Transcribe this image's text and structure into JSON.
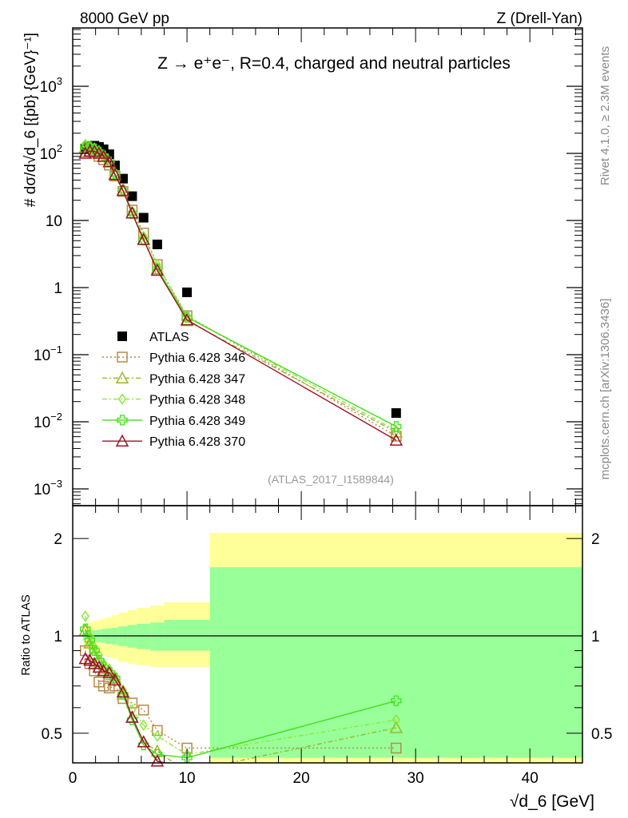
{
  "header": {
    "left": "8000 GeV pp",
    "right": "Z (Drell-Yan)"
  },
  "side": {
    "top": "Rivet 4.1.0, ≥ 2.3M events",
    "bottom": "mcplots.cern.ch [arXiv:1306.3436]"
  },
  "chart_data": [
    {
      "type": "scatter",
      "title": "Z → e⁺e⁻, R=0.4, charged and neutral particles",
      "ylabel": "# dσ/d√d_6 [{pb} {GeV}⁻¹]",
      "xlabel": "√d_6 [GeV]",
      "yscale": "log",
      "ylim": [
        0.00056,
        7400
      ],
      "xlim": [
        0,
        44.6
      ],
      "annotation": "(ATLAS_2017_I1589844)",
      "yticks": [
        {
          "base": "10",
          "exp": "3",
          "v": 1000
        },
        {
          "base": "10",
          "exp": "2",
          "v": 100
        },
        {
          "base": "10",
          "exp": "",
          "v": 10
        },
        {
          "base": "1",
          "exp": "",
          "v": 1
        },
        {
          "base": "10",
          "exp": "−1",
          "v": 0.1
        },
        {
          "base": "10",
          "exp": "−2",
          "v": 0.01
        },
        {
          "base": "10",
          "exp": "−3",
          "v": 0.001
        }
      ],
      "x": [
        1.1,
        1.5,
        1.9,
        2.3,
        2.7,
        3.2,
        3.7,
        4.4,
        5.2,
        6.2,
        7.4,
        10.0,
        28.3
      ],
      "legend_placement": "center-left",
      "series": [
        {
          "name": "ATLAS",
          "color": "#000000",
          "marker": "filled-square",
          "line": "none",
          "values": [
            118,
            128,
            130,
            125,
            115,
            97,
            66,
            42,
            23,
            11,
            4.4,
            0.85,
            0.0135
          ]
        },
        {
          "name": "Pythia 6.428 346",
          "color": "#b8894a",
          "marker": "open-square",
          "line": "dotted",
          "values": [
            106,
            105,
            101,
            90,
            80.5,
            67,
            46,
            27,
            14.3,
            6.5,
            2.2,
            0.38,
            0.0061
          ]
        },
        {
          "name": "Pythia 6.428 347",
          "color": "#9ab82a",
          "marker": "open-triangle",
          "line": "dashdot",
          "values": [
            123,
            122,
            114,
            104,
            91,
            74,
            49,
            28,
            12.9,
            5.2,
            1.9,
            0.32,
            0.007
          ]
        },
        {
          "name": "Pythia 6.428 348",
          "color": "#8ee83a",
          "marker": "open-diamond",
          "line": "dashdot",
          "values": [
            136,
            128,
            120,
            109,
            94,
            77,
            50,
            29,
            13.6,
            5.8,
            2.2,
            0.37,
            0.0074
          ]
        },
        {
          "name": "Pythia 6.428 349",
          "color": "#3ee01a",
          "marker": "open-cross",
          "line": "solid",
          "values": [
            124,
            124,
            117,
            105,
            92,
            75,
            49,
            28,
            12.7,
            5.1,
            1.9,
            0.36,
            0.0085
          ]
        },
        {
          "name": "Pythia 6.428 370",
          "color": "#a01028",
          "marker": "open-triangle",
          "line": "solid",
          "values": [
            100,
            108,
            107,
            100,
            90,
            75,
            48,
            28,
            12.9,
            5.2,
            1.8,
            0.33,
            0.0053
          ]
        }
      ]
    },
    {
      "type": "line",
      "ylabel": "Ratio to ATLAS",
      "xlabel": "√d_6 [GeV]",
      "yscale": "log",
      "ylim": [
        0.405,
        2.53
      ],
      "xlim": [
        0,
        44.6
      ],
      "yticks": [
        "0.5",
        "1",
        "2"
      ],
      "xticks": [
        "0",
        "10",
        "20",
        "30",
        "40"
      ],
      "bands": {
        "bin_edges": [
          0.9,
          1.3,
          1.7,
          2.1,
          2.5,
          2.9,
          3.4,
          4.0,
          4.8,
          5.6,
          6.8,
          8.0,
          12.0,
          44.6
        ],
        "total_up": [
          1.09,
          1.1,
          1.11,
          1.12,
          1.13,
          1.14,
          1.16,
          1.18,
          1.2,
          1.22,
          1.24,
          1.27,
          2.08
        ],
        "total_down": [
          0.91,
          0.9,
          0.89,
          0.88,
          0.87,
          0.86,
          0.85,
          0.83,
          0.82,
          0.81,
          0.8,
          0.8,
          0.38
        ],
        "stat_up": [
          1.03,
          1.035,
          1.04,
          1.045,
          1.05,
          1.055,
          1.06,
          1.07,
          1.08,
          1.09,
          1.1,
          1.12,
          1.63
        ],
        "stat_down": [
          0.97,
          0.965,
          0.96,
          0.955,
          0.95,
          0.945,
          0.94,
          0.93,
          0.92,
          0.91,
          0.9,
          0.9,
          0.42
        ],
        "total_color": "#ffff99",
        "stat_color": "#99ff99"
      },
      "series": [
        {
          "name": "Pythia 6.428 346",
          "values": [
            0.9,
            0.82,
            0.78,
            0.72,
            0.7,
            0.69,
            0.7,
            0.64,
            0.62,
            0.59,
            0.51,
            0.45,
            0.45
          ]
        },
        {
          "name": "Pythia 6.428 347",
          "values": [
            1.04,
            0.95,
            0.88,
            0.83,
            0.79,
            0.76,
            0.74,
            0.66,
            0.56,
            0.47,
            0.44,
            0.38,
            0.52
          ]
        },
        {
          "name": "Pythia 6.428 348",
          "values": [
            1.15,
            1.0,
            0.92,
            0.87,
            0.82,
            0.79,
            0.75,
            0.68,
            0.59,
            0.53,
            0.49,
            0.43,
            0.55
          ]
        },
        {
          "name": "Pythia 6.428 349",
          "values": [
            1.05,
            0.97,
            0.9,
            0.84,
            0.8,
            0.77,
            0.74,
            0.66,
            0.55,
            0.46,
            0.43,
            0.42,
            0.63
          ]
        },
        {
          "name": "Pythia 6.428 370",
          "values": [
            0.85,
            0.84,
            0.82,
            0.8,
            0.78,
            0.77,
            0.73,
            0.67,
            0.56,
            0.47,
            0.41,
            0.39,
            0.39
          ]
        }
      ]
    }
  ]
}
